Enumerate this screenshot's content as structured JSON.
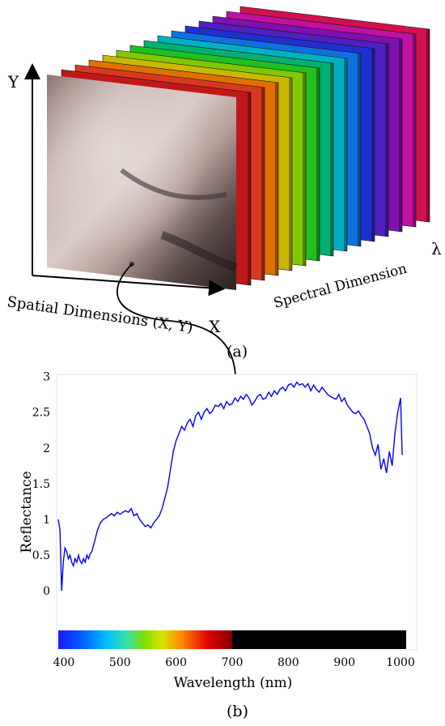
{
  "panel_a": {
    "caption": "(a)",
    "axis_y_label": "Y",
    "axis_x_label": "X",
    "axis_lambda_label": "λ",
    "spatial_label": "Spatial Dimensions (X, Y)",
    "spectral_label": "Spectral Dimension",
    "band_colors": [
      "#c01818",
      "#d83820",
      "#e07000",
      "#c8b800",
      "#80c800",
      "#20c020",
      "#00b070",
      "#00b0c0",
      "#1070e0",
      "#2030d0",
      "#5020c0",
      "#8010b0",
      "#c010a0",
      "#d01050"
    ]
  },
  "panel_b": {
    "caption": "(b)"
  },
  "chart_data": {
    "type": "line",
    "title": "",
    "xlabel": "Wavelength (nm)",
    "ylabel": "Reflectance",
    "xlim": [
      390,
      1010
    ],
    "ylim": [
      -0.35,
      3.2
    ],
    "xticks": [
      400,
      500,
      600,
      700,
      800,
      900,
      1000
    ],
    "yticks": [
      0,
      0.5,
      1,
      1.5,
      2,
      2.5,
      3
    ],
    "xtick_labels": [
      "400",
      "500",
      "600",
      "700",
      "800",
      "900",
      "1000"
    ],
    "ytick_labels": [
      "0",
      "0.5",
      "1",
      "1.5",
      "2",
      "2.5",
      "3"
    ],
    "grid": false,
    "line_color": "#0000ff",
    "spectrum_bar": {
      "visible_range": [
        390,
        700
      ],
      "nir_color": "#000000"
    },
    "series": [
      {
        "x": [
          390,
          393,
          396,
          399,
          402,
          405,
          408,
          411,
          414,
          417,
          420,
          423,
          426,
          429,
          432,
          435,
          438,
          441,
          444,
          447,
          450,
          455,
          460,
          465,
          470,
          475,
          480,
          485,
          490,
          495,
          500,
          505,
          510,
          515,
          520,
          525,
          530,
          535,
          540,
          545,
          550,
          555,
          560,
          565,
          570,
          575,
          580,
          585,
          590,
          595,
          600,
          605,
          610,
          615,
          620,
          625,
          630,
          635,
          640,
          645,
          650,
          655,
          660,
          665,
          670,
          675,
          680,
          685,
          690,
          695,
          700,
          705,
          710,
          715,
          720,
          725,
          730,
          735,
          740,
          745,
          750,
          755,
          760,
          765,
          770,
          775,
          780,
          785,
          790,
          795,
          800,
          805,
          810,
          815,
          820,
          825,
          830,
          835,
          840,
          845,
          850,
          855,
          860,
          865,
          870,
          875,
          880,
          885,
          890,
          895,
          900,
          905,
          910,
          915,
          920,
          925,
          930,
          935,
          940,
          945,
          950,
          955,
          960,
          965,
          970,
          975,
          980,
          985,
          990,
          995,
          1000,
          1003
        ],
        "y": [
          1.0,
          0.85,
          0.0,
          0.4,
          0.6,
          0.55,
          0.45,
          0.5,
          0.4,
          0.35,
          0.45,
          0.4,
          0.5,
          0.42,
          0.38,
          0.45,
          0.4,
          0.5,
          0.45,
          0.52,
          0.55,
          0.7,
          0.85,
          0.95,
          1.0,
          1.02,
          1.05,
          1.08,
          1.05,
          1.1,
          1.07,
          1.1,
          1.12,
          1.1,
          1.15,
          1.05,
          1.08,
          1.0,
          0.95,
          0.9,
          0.92,
          0.88,
          0.95,
          1.0,
          1.05,
          1.15,
          1.3,
          1.45,
          1.7,
          1.95,
          2.1,
          2.2,
          2.3,
          2.25,
          2.35,
          2.4,
          2.3,
          2.45,
          2.5,
          2.4,
          2.5,
          2.55,
          2.48,
          2.52,
          2.6,
          2.58,
          2.62,
          2.55,
          2.65,
          2.6,
          2.62,
          2.7,
          2.65,
          2.72,
          2.68,
          2.75,
          2.7,
          2.6,
          2.65,
          2.72,
          2.75,
          2.68,
          2.7,
          2.78,
          2.72,
          2.8,
          2.75,
          2.82,
          2.85,
          2.8,
          2.88,
          2.9,
          2.85,
          2.92,
          2.88,
          2.9,
          2.85,
          2.9,
          2.8,
          2.88,
          2.82,
          2.78,
          2.85,
          2.8,
          2.75,
          2.72,
          2.7,
          2.68,
          2.75,
          2.65,
          2.7,
          2.6,
          2.55,
          2.5,
          2.48,
          2.52,
          2.45,
          2.4,
          2.3,
          2.2,
          2.0,
          1.9,
          2.05,
          1.7,
          1.85,
          1.65,
          1.95,
          1.75,
          2.2,
          2.5,
          2.7,
          1.9
        ]
      }
    ]
  }
}
